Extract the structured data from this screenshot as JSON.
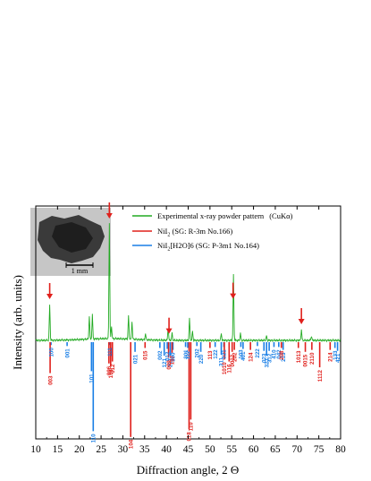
{
  "chart_data": {
    "type": "line",
    "xlabel": "Diffraction angle, 2 Θ",
    "ylabel": "Intensity (arb. units)",
    "xlim": [
      10,
      80
    ],
    "xticks": [
      10,
      15,
      20,
      25,
      30,
      35,
      40,
      45,
      50,
      55,
      60,
      65,
      70,
      75,
      80
    ],
    "yticks_visible": false,
    "legend": {
      "placement": "top-right",
      "entries": [
        {
          "name": "Experimental x-ray powder pattern",
          "suffix": "(CuKα)",
          "color": "#22aa22",
          "main": "Experimental x-ray powder pattern",
          "sub": "",
          "tail": "(CuKα)"
        },
        {
          "name": "NiI2 (SG: R-3m No.166)",
          "color": "#e0201c",
          "main": "NiI",
          "sub": "2",
          "tail": " (SG: R-3m No.166)"
        },
        {
          "name": "NiI2[H2O]6 (SG: P-3m1 No.164)",
          "color": "#1a7fe6",
          "main": "NiI",
          "sub": "2",
          "tail": "[H2O]6 (SG: P-3m1 No.164)"
        }
      ]
    },
    "inset": {
      "scale_label": "1 mm"
    },
    "experimental_peaks": [
      {
        "x": 13.2,
        "h": 0.4
      },
      {
        "x": 22.3,
        "h": 0.26
      },
      {
        "x": 23.0,
        "h": 0.27
      },
      {
        "x": 26.9,
        "h": 1.3
      },
      {
        "x": 27.4,
        "h": 0.14
      },
      {
        "x": 31.3,
        "h": 0.26
      },
      {
        "x": 32.1,
        "h": 0.2
      },
      {
        "x": 35.2,
        "h": 0.07
      },
      {
        "x": 40.4,
        "h": 0.14
      },
      {
        "x": 41.3,
        "h": 0.08
      },
      {
        "x": 45.3,
        "h": 0.25
      },
      {
        "x": 46.0,
        "h": 0.1
      },
      {
        "x": 52.6,
        "h": 0.08
      },
      {
        "x": 55.4,
        "h": 0.73
      },
      {
        "x": 57.0,
        "h": 0.08
      },
      {
        "x": 63.0,
        "h": 0.05
      },
      {
        "x": 71.0,
        "h": 0.12
      },
      {
        "x": 73.3,
        "h": 0.05
      }
    ],
    "arrows_x": [
      13.2,
      26.9,
      40.6,
      55.3,
      71.0
    ],
    "NiI2_reflections": [
      {
        "x": 13.3,
        "h": 0.32,
        "hkl": "003"
      },
      {
        "x": 26.8,
        "h": 0.22,
        "hkl": "006"
      },
      {
        "x": 27.2,
        "h": 0.25,
        "hkl": "101"
      },
      {
        "x": 27.6,
        "h": 0.2,
        "hkl": "012"
      },
      {
        "x": 31.8,
        "h": 0.98,
        "hkl": "104"
      },
      {
        "x": 35.1,
        "h": 0.06,
        "hkl": "015"
      },
      {
        "x": 40.5,
        "h": 0.16,
        "hkl": "009"
      },
      {
        "x": 41.3,
        "h": 0.11,
        "hkl": "107"
      },
      {
        "x": 45.2,
        "h": 0.9,
        "hkl": "018"
      },
      {
        "x": 45.6,
        "h": 0.8,
        "hkl": "110"
      },
      {
        "x": 50.0,
        "h": 0.06,
        "hkl": "113"
      },
      {
        "x": 53.3,
        "h": 0.18,
        "hkl": "1010"
      },
      {
        "x": 54.4,
        "h": 0.2,
        "hkl": "116"
      },
      {
        "x": 55.1,
        "h": 0.1,
        "hkl": "0012"
      },
      {
        "x": 55.6,
        "h": 0.08,
        "hkl": "202"
      },
      {
        "x": 59.3,
        "h": 0.08,
        "hkl": "124"
      },
      {
        "x": 66.4,
        "h": 0.06,
        "hkl": "208"
      },
      {
        "x": 70.3,
        "h": 0.06,
        "hkl": "1013"
      },
      {
        "x": 71.9,
        "h": 0.1,
        "hkl": "0015"
      },
      {
        "x": 73.4,
        "h": 0.08,
        "hkl": "2110"
      },
      {
        "x": 75.2,
        "h": 0.26,
        "hkl": "1112"
      },
      {
        "x": 77.6,
        "h": 0.08,
        "hkl": "214"
      }
    ],
    "NiI2H2O6_reflections": [
      {
        "x": 13.5,
        "h": 0.03,
        "hkl": "100"
      },
      {
        "x": 17.2,
        "h": 0.04,
        "hkl": "001"
      },
      {
        "x": 22.8,
        "h": 0.3,
        "hkl": "101"
      },
      {
        "x": 23.2,
        "h": 0.92,
        "hkl": "110"
      },
      {
        "x": 27.0,
        "h": 0.03,
        "hkl": "111"
      },
      {
        "x": 32.8,
        "h": 0.1,
        "hkl": "021"
      },
      {
        "x": 38.5,
        "h": 0.06,
        "hkl": "002"
      },
      {
        "x": 39.5,
        "h": 0.14,
        "hkl": "121"
      },
      {
        "x": 40.2,
        "h": 0.07,
        "hkl": "012"
      },
      {
        "x": 40.9,
        "h": 0.14,
        "hkl": "211"
      },
      {
        "x": 41.5,
        "h": 0.08,
        "hkl": "300"
      },
      {
        "x": 44.4,
        "h": 0.05,
        "hkl": "301"
      },
      {
        "x": 44.9,
        "h": 0.06,
        "hkl": "112"
      },
      {
        "x": 47.0,
        "h": 0.04,
        "hkl": "202"
      },
      {
        "x": 47.9,
        "h": 0.1,
        "hkl": "220"
      },
      {
        "x": 51.2,
        "h": 0.05,
        "hkl": "122"
      },
      {
        "x": 52.6,
        "h": 0.13,
        "hkl": "311"
      },
      {
        "x": 53.2,
        "h": 0.05,
        "hkl": "221"
      },
      {
        "x": 57.1,
        "h": 0.05,
        "hkl": "103"
      },
      {
        "x": 57.6,
        "h": 0.07,
        "hkl": "401"
      },
      {
        "x": 60.9,
        "h": 0.04,
        "hkl": "222"
      },
      {
        "x": 62.4,
        "h": 0.09,
        "hkl": "023"
      },
      {
        "x": 63.0,
        "h": 0.14,
        "hkl": "321"
      },
      {
        "x": 63.6,
        "h": 0.09,
        "hkl": "312"
      },
      {
        "x": 64.7,
        "h": 0.05,
        "hkl": "410"
      },
      {
        "x": 65.8,
        "h": 0.05,
        "hkl": "042"
      },
      {
        "x": 66.8,
        "h": 0.08,
        "hkl": "213"
      },
      {
        "x": 78.7,
        "h": 0.06,
        "hkl": "133"
      },
      {
        "x": 79.3,
        "h": 0.09,
        "hkl": "421"
      }
    ]
  }
}
